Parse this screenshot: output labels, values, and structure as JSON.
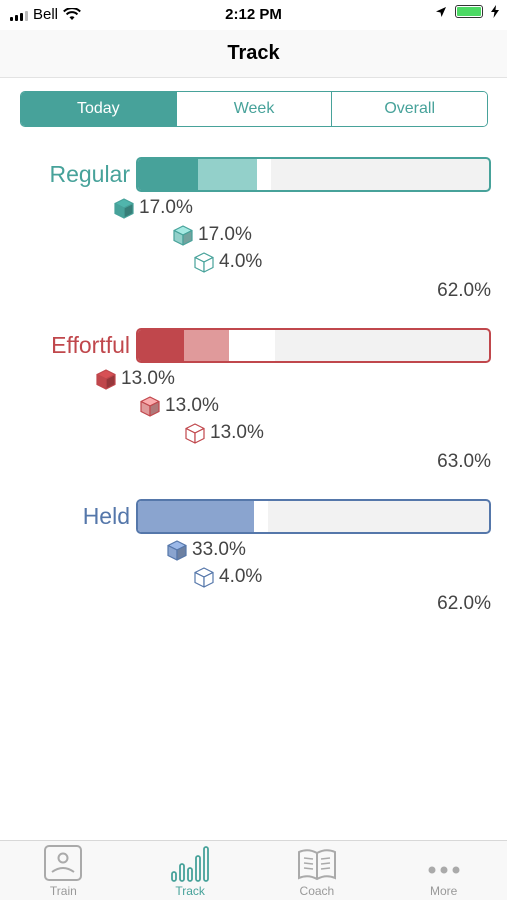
{
  "status": {
    "carrier": "Bell",
    "time": "2:12 PM"
  },
  "nav": {
    "title": "Track"
  },
  "segments": [
    "Today",
    "Week",
    "Overall"
  ],
  "sections": [
    {
      "label": "Regular",
      "color": "#47a29a",
      "fills": [
        0.17,
        0.17,
        0.04
      ],
      "fill_colors": [
        "#47a29a",
        "#93d0ca",
        "#ffffff"
      ],
      "stats": [
        "17.0%",
        "17.0%",
        "4.0%"
      ],
      "total": "62.0%"
    },
    {
      "label": "Effortful",
      "color": "#c0474c",
      "fills": [
        0.13,
        0.13,
        0.13
      ],
      "fill_colors": [
        "#c0474c",
        "#e09a9b",
        "#ffffff"
      ],
      "stats": [
        "13.0%",
        "13.0%",
        "13.0%"
      ],
      "total": "63.0%"
    },
    {
      "label": "Held",
      "color": "#5577aa",
      "fills": [
        0.33,
        0.04
      ],
      "fill_colors": [
        "#8aa4cf",
        "#ffffff"
      ],
      "stats": [
        "33.0%",
        "4.0%"
      ],
      "total": "62.0%"
    }
  ],
  "tabs": [
    {
      "label": "Train",
      "icon": "train-icon"
    },
    {
      "label": "Track",
      "icon": "track-icon"
    },
    {
      "label": "Coach",
      "icon": "coach-icon"
    },
    {
      "label": "More",
      "icon": "more-icon"
    }
  ]
}
